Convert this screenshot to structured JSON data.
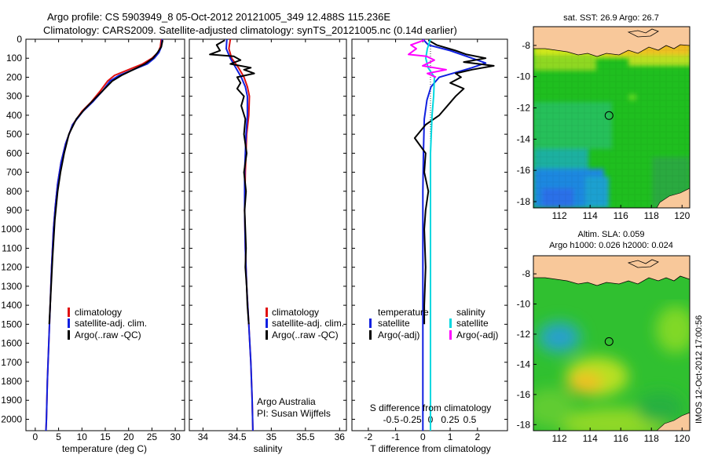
{
  "chart_data": {
    "header": {
      "title_line1": "Argo profile: CS 5903949_8 05-Oct-2012 20121005_349 12.488S 115.236E",
      "title_line2": "Climatology: CARS2009. Satellite-adjusted climatology: synTS_20121005.nc (0.14d earlier)"
    },
    "depth_ticks": [
      0,
      100,
      200,
      300,
      400,
      500,
      600,
      700,
      800,
      900,
      1000,
      1100,
      1200,
      1300,
      1400,
      1500,
      1600,
      1700,
      1800,
      1900,
      2000
    ],
    "panels": [
      {
        "id": "temperature",
        "type": "line",
        "xlabel": "temperature (deg C)",
        "xlim": [
          -2,
          32
        ],
        "ylim": [
          0,
          2060
        ],
        "xticks": [
          0,
          5,
          10,
          15,
          20,
          25,
          30
        ],
        "xtick_labels": [
          "0",
          "5",
          "10",
          "15",
          "20",
          "25",
          "30"
        ],
        "legend": [
          "climatology",
          "satellite-adj. clim.",
          "Argo(..raw -QC)"
        ],
        "series": [
          {
            "name": "climatology",
            "color": "#e01010",
            "points": [
              [
                27,
                0
              ],
              [
                26.8,
                40
              ],
              [
                26.3,
                70
              ],
              [
                25,
                100
              ],
              [
                23,
                130
              ],
              [
                20,
                160
              ],
              [
                17,
                190
              ],
              [
                15.5,
                220
              ],
              [
                14,
                270
              ],
              [
                12,
                330
              ],
              [
                10,
                380
              ],
              [
                8,
                450
              ],
              [
                6.5,
                550
              ],
              [
                5.5,
                650
              ],
              [
                4.8,
                760
              ],
              [
                4.3,
                880
              ],
              [
                3.9,
                1000
              ],
              [
                3.5,
                1200
              ],
              [
                3.2,
                1400
              ],
              [
                2.9,
                1600
              ],
              [
                2.6,
                1800
              ],
              [
                2.4,
                2000
              ],
              [
                2.3,
                2060
              ]
            ]
          },
          {
            "name": "satellite-adj. clim.",
            "color": "#1020e0",
            "points": [
              [
                27.2,
                0
              ],
              [
                27,
                40
              ],
              [
                26.5,
                70
              ],
              [
                25.5,
                100
              ],
              [
                24,
                130
              ],
              [
                21,
                160
              ],
              [
                18,
                190
              ],
              [
                16,
                220
              ],
              [
                14.5,
                270
              ],
              [
                12.3,
                330
              ],
              [
                10.2,
                380
              ],
              [
                8,
                450
              ],
              [
                6.5,
                550
              ],
              [
                5.5,
                650
              ],
              [
                4.8,
                760
              ],
              [
                4.3,
                880
              ],
              [
                3.9,
                1000
              ],
              [
                3.5,
                1200
              ],
              [
                3.2,
                1400
              ],
              [
                2.9,
                1600
              ],
              [
                2.6,
                1800
              ],
              [
                2.4,
                2000
              ],
              [
                2.3,
                2060
              ]
            ]
          },
          {
            "name": "Argo(..raw -QC)",
            "color": "#000000",
            "points": [
              [
                27.3,
                5
              ],
              [
                27,
                40
              ],
              [
                26.2,
                70
              ],
              [
                25.2,
                100
              ],
              [
                23.5,
                130
              ],
              [
                21,
                160
              ],
              [
                18.5,
                190
              ],
              [
                16.5,
                220
              ],
              [
                14.5,
                270
              ],
              [
                12.5,
                320
              ],
              [
                10.5,
                370
              ],
              [
                8.8,
                420
              ],
              [
                7.2,
                500
              ],
              [
                6.2,
                600
              ],
              [
                5.4,
                700
              ],
              [
                4.8,
                800
              ],
              [
                4.2,
                950
              ],
              [
                3.7,
                1150
              ],
              [
                3.3,
                1350
              ],
              [
                3,
                1500
              ]
            ]
          }
        ]
      },
      {
        "id": "salinity",
        "type": "line",
        "xlabel": "salinity",
        "xlim": [
          33.8,
          36.1
        ],
        "ylim": [
          0,
          2060
        ],
        "xticks": [
          34,
          34.5,
          35,
          35.5,
          36
        ],
        "xtick_labels": [
          "34",
          "34.5",
          "35",
          "35.5",
          "36"
        ],
        "legend": [
          "climatology",
          "satellite-adj. clim.",
          "Argo(..raw -QC)"
        ],
        "annotation": [
          "Argo Australia",
          "PI: Susan Wijffels"
        ],
        "series": [
          {
            "name": "climatology",
            "color": "#e01010",
            "points": [
              [
                34.4,
                0
              ],
              [
                34.38,
                50
              ],
              [
                34.42,
                100
              ],
              [
                34.52,
                150
              ],
              [
                34.6,
                200
              ],
              [
                34.65,
                250
              ],
              [
                34.68,
                300
              ],
              [
                34.67,
                400
              ],
              [
                34.64,
                500
              ],
              [
                34.62,
                700
              ],
              [
                34.61,
                900
              ],
              [
                34.62,
                1100
              ],
              [
                34.64,
                1300
              ],
              [
                34.67,
                1500
              ],
              [
                34.7,
                1700
              ],
              [
                34.72,
                1900
              ],
              [
                34.73,
                2060
              ]
            ]
          },
          {
            "name": "satellite-adj. clim.",
            "color": "#1020e0",
            "points": [
              [
                34.35,
                0
              ],
              [
                34.34,
                50
              ],
              [
                34.4,
                100
              ],
              [
                34.48,
                150
              ],
              [
                34.56,
                200
              ],
              [
                34.62,
                250
              ],
              [
                34.65,
                300
              ],
              [
                34.65,
                400
              ],
              [
                34.63,
                500
              ],
              [
                34.61,
                700
              ],
              [
                34.61,
                900
              ],
              [
                34.62,
                1100
              ],
              [
                34.64,
                1300
              ],
              [
                34.67,
                1500
              ],
              [
                34.7,
                1700
              ],
              [
                34.72,
                1900
              ],
              [
                34.73,
                2060
              ]
            ]
          },
          {
            "name": "Argo(..raw -QC)",
            "color": "#000000",
            "points": [
              [
                34.32,
                5
              ],
              [
                34.2,
                30
              ],
              [
                34.25,
                60
              ],
              [
                34.1,
                80
              ],
              [
                34.45,
                90
              ],
              [
                34.55,
                110
              ],
              [
                34.4,
                130
              ],
              [
                34.7,
                150
              ],
              [
                34.6,
                160
              ],
              [
                34.75,
                180
              ],
              [
                34.5,
                200
              ],
              [
                34.55,
                230
              ],
              [
                34.5,
                260
              ],
              [
                34.6,
                300
              ],
              [
                34.56,
                350
              ],
              [
                34.62,
                420
              ],
              [
                34.6,
                500
              ],
              [
                34.64,
                600
              ],
              [
                34.6,
                700
              ],
              [
                34.63,
                800
              ],
              [
                34.61,
                900
              ],
              [
                34.62,
                1000
              ],
              [
                34.63,
                1100
              ],
              [
                34.62,
                1200
              ],
              [
                34.64,
                1300
              ],
              [
                34.65,
                1400
              ],
              [
                34.67,
                1500
              ]
            ]
          }
        ]
      },
      {
        "id": "difference",
        "type": "line",
        "xlabel": "T difference from climatology",
        "xlabel_top": "S difference from climatology",
        "xlim": [
          -2.6,
          3.1
        ],
        "ylim": [
          0,
          2060
        ],
        "xticks": [
          -2,
          -1,
          0,
          1,
          2
        ],
        "xtick_labels": [
          "-2",
          "-1",
          "0",
          "1",
          "2"
        ],
        "s_xticks": [
          -0.5,
          -0.25,
          0,
          0.25,
          0.5
        ],
        "s_xtick_labels": [
          "-0.5",
          "-0.25",
          "0",
          "0.25",
          "0.5"
        ],
        "legend_temperature": {
          "title": "temperature",
          "items": [
            "satellite",
            "Argo(-adj)"
          ]
        },
        "legend_salinity": {
          "title": "salinity",
          "items": [
            "satellite",
            "Argo(-adj)"
          ]
        },
        "series": [
          {
            "name": "T satellite",
            "color": "#1020e0",
            "points": [
              [
                0,
                0
              ],
              [
                0.2,
                30
              ],
              [
                1,
                60
              ],
              [
                1.8,
                100
              ],
              [
                2.3,
                125
              ],
              [
                1.8,
                150
              ],
              [
                1.2,
                175
              ],
              [
                0.6,
                200
              ],
              [
                0.3,
                250
              ],
              [
                0.15,
                320
              ],
              [
                0.05,
                420
              ],
              [
                0.02,
                600
              ],
              [
                0,
                800
              ],
              [
                0,
                1200
              ],
              [
                0,
                1600
              ],
              [
                0,
                2060
              ]
            ]
          },
          {
            "name": "T Argo(-adj)",
            "color": "#000000",
            "points": [
              [
                0.2,
                5
              ],
              [
                0.5,
                30
              ],
              [
                1.2,
                60
              ],
              [
                1.6,
                80
              ],
              [
                2.3,
                100
              ],
              [
                1.5,
                120
              ],
              [
                2.6,
                140
              ],
              [
                1.8,
                160
              ],
              [
                1.2,
                180
              ],
              [
                1.4,
                200
              ],
              [
                1.0,
                230
              ],
              [
                1.5,
                260
              ],
              [
                1.2,
                300
              ],
              [
                0.9,
                350
              ],
              [
                0.6,
                400
              ],
              [
                0.1,
                450
              ],
              [
                -0.3,
                520
              ],
              [
                0.1,
                600
              ],
              [
                0.05,
                700
              ],
              [
                0.2,
                800
              ],
              [
                0.1,
                900
              ],
              [
                0.05,
                1000
              ],
              [
                0.1,
                1200
              ],
              [
                0.05,
                1400
              ],
              [
                0.05,
                1500
              ]
            ]
          },
          {
            "name": "S satellite",
            "color": "#00d8e0",
            "points": [
              [
                0,
                0
              ],
              [
                -0.04,
                50
              ],
              [
                -0.06,
                100
              ],
              [
                -0.03,
                150
              ],
              [
                0.05,
                200
              ],
              [
                0.04,
                300
              ],
              [
                0.02,
                400
              ],
              [
                0,
                600
              ],
              [
                0,
                1000
              ],
              [
                0,
                1500
              ],
              [
                0,
                2060
              ]
            ]
          },
          {
            "name": "S Argo(-adj)",
            "color": "#ff00ff",
            "points": [
              [
                -0.08,
                5
              ],
              [
                -0.25,
                30
              ],
              [
                -0.18,
                50
              ],
              [
                -0.28,
                80
              ],
              [
                -0.05,
                90
              ],
              [
                0.05,
                110
              ],
              [
                -0.1,
                140
              ],
              [
                0.2,
                160
              ],
              [
                -0.04,
                180
              ],
              [
                0.07,
                200
              ]
            ]
          }
        ]
      }
    ],
    "maps": [
      {
        "id": "sst-map",
        "title": "sat. SST: 26.9  Argo: 26.7",
        "xticks": [
          112,
          114,
          116,
          118,
          120
        ],
        "yticks": [
          -8,
          -10,
          -12,
          -14,
          -16,
          -18
        ],
        "xlim": [
          110.3,
          120.5
        ],
        "ylim": [
          -18.4,
          -6.8
        ],
        "marker": [
          115.236,
          -12.488
        ]
      },
      {
        "id": "sla-map",
        "title_line1": "Altim. SLA: 0.059",
        "title_line2": "Argo h1000: 0.026  h2000: 0.024",
        "xticks": [
          112,
          114,
          116,
          118,
          120
        ],
        "yticks": [
          -8,
          -10,
          -12,
          -14,
          -16,
          -18
        ],
        "xlim": [
          110.3,
          120.5
        ],
        "ylim": [
          -18.4,
          -6.8
        ],
        "marker": [
          115.236,
          -12.488
        ]
      }
    ],
    "side_stamp": "IMOS 12-Oct-2012 17:00:56"
  }
}
